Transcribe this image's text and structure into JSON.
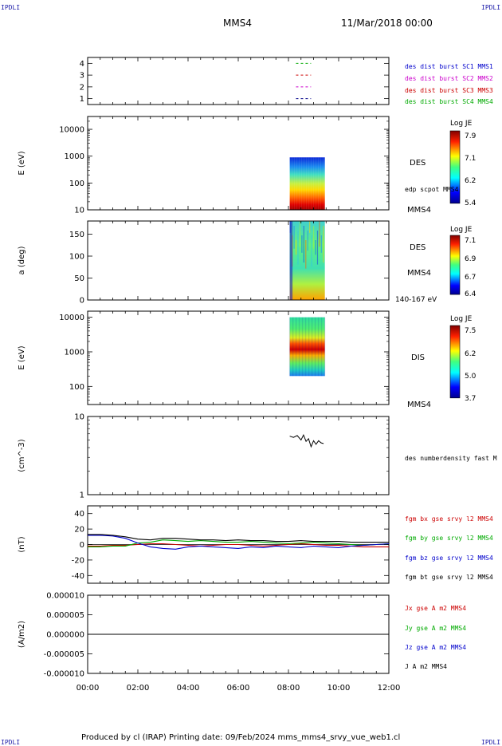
{
  "page": {
    "corner_label": "IPDLI",
    "spacecraft": "MMS4",
    "datetime": "11/Mar/2018 00:00",
    "footer": "Produced by cl (IRAP)   Printing date: 09/Feb/2024   mms_mms4_srvy_vue_web1.cl"
  },
  "chart_data": [
    {
      "type": "scatter",
      "name": "burst-availability",
      "y_ticks": [
        "1",
        "2",
        "3",
        "4"
      ],
      "ylim": [
        0.5,
        4.5
      ],
      "legend": [
        {
          "label": "des dist burst SC1 MMS1",
          "color": "#0000cc"
        },
        {
          "label": "des dist burst SC2 MMS2",
          "color": "#cc00cc"
        },
        {
          "label": "des dist burst SC3 MMS3",
          "color": "#cc0000"
        },
        {
          "label": "des dist burst SC4 MMS4",
          "color": "#00aa00"
        }
      ],
      "segments": [
        {
          "sc": 4,
          "start": 8.3,
          "end": 8.9,
          "color": "#00aa00"
        },
        {
          "sc": 3,
          "start": 8.3,
          "end": 8.9,
          "color": "#cc0000"
        },
        {
          "sc": 2,
          "start": 8.3,
          "end": 8.9,
          "color": "#cc00cc"
        },
        {
          "sc": 1,
          "start": 8.3,
          "end": 8.9,
          "color": "#000088"
        }
      ]
    },
    {
      "type": "heatmap",
      "name": "des-energy",
      "ylabel": "E (eV)",
      "y_scale": "log",
      "y_ticks": [
        "10",
        "100",
        "1000",
        "10000"
      ],
      "ylim": [
        10,
        30000
      ],
      "panel_label": "DES",
      "extra_label": "edp scpot MMS4",
      "colorbar": {
        "title": "Log JE",
        "ticks": [
          "7.9",
          "7.1",
          "6.2",
          "5.4"
        ]
      },
      "block": {
        "t_start": 8.05,
        "t_end": 9.45
      }
    },
    {
      "type": "heatmap",
      "name": "des-pitch",
      "ylabel": "a (deg)",
      "y_ticks": [
        "0",
        "50",
        "100",
        "150"
      ],
      "ylim": [
        0,
        180
      ],
      "panel_label": "DES",
      "spacecraft_label": "MMS4",
      "energy_label": "140-167 eV",
      "colorbar": {
        "title": "Log JE",
        "ticks": [
          "7.1",
          "6.9",
          "6.7",
          "6.4"
        ]
      },
      "block": {
        "t_start": 8.05,
        "t_end": 9.45
      }
    },
    {
      "type": "heatmap",
      "name": "dis-energy",
      "ylabel": "E (eV)",
      "y_scale": "log",
      "y_ticks": [
        "100",
        "1000",
        "10000"
      ],
      "ylim": [
        30,
        15000
      ],
      "panel_label": "DIS",
      "spacecraft_label": "MMS4",
      "colorbar": {
        "title": "Log JE",
        "ticks": [
          "7.5",
          "6.2",
          "5.0",
          "3.7"
        ]
      },
      "block": {
        "t_start": 8.05,
        "t_end": 9.45
      }
    },
    {
      "type": "line",
      "name": "density",
      "ylabel": "(cm^-3)",
      "y_scale": "log",
      "y_ticks": [
        "1",
        "10"
      ],
      "ylim": [
        1,
        10
      ],
      "legend": [
        {
          "label": "des numberdensity fast M",
          "color": "#000000"
        }
      ],
      "x": [
        8.05,
        8.2,
        8.35,
        8.5,
        8.6,
        8.7,
        8.8,
        8.9,
        9.0,
        9.1,
        9.2,
        9.3,
        9.4
      ],
      "values": [
        5.6,
        5.4,
        5.7,
        5.0,
        5.8,
        4.8,
        5.2,
        4.1,
        4.9,
        4.4,
        4.9,
        4.6,
        4.5
      ]
    },
    {
      "type": "line",
      "name": "magnetic-field",
      "ylabel": "(nT)",
      "y_ticks": [
        "-40",
        "-20",
        "0",
        "20",
        "40"
      ],
      "ylim": [
        -50,
        50
      ],
      "legend": [
        {
          "label": "fgm bx gse srvy l2 MMS4",
          "color": "#cc0000"
        },
        {
          "label": "fgm by gse srvy l2 MMS4",
          "color": "#00aa00"
        },
        {
          "label": "fgm bz gse srvy l2 MMS4",
          "color": "#0000cc"
        },
        {
          "label": "fgm bt gse srvy l2 MMS4",
          "color": "#000000"
        }
      ],
      "x": [
        0,
        0.5,
        1,
        1.5,
        2,
        2.5,
        3,
        3.5,
        4,
        4.5,
        5,
        5.5,
        6,
        6.5,
        7,
        7.5,
        8,
        8.5,
        9,
        9.5,
        10,
        10.5,
        11,
        11.5,
        12
      ],
      "series": [
        {
          "name": "fgm bx gse srvy l2 MMS4",
          "color": "#cc0000",
          "values": [
            -2,
            -2,
            -1,
            -1,
            0,
            1,
            1,
            0,
            -1,
            -2,
            -1,
            0,
            0,
            -1,
            -2,
            -1,
            0,
            1,
            0,
            -1,
            -1,
            -2,
            -3,
            -3,
            -3
          ]
        },
        {
          "name": "fgm by gse srvy l2 MMS4",
          "color": "#00aa00",
          "values": [
            -3,
            -3,
            -2,
            -2,
            2,
            3,
            6,
            5,
            4,
            5,
            4,
            3,
            3,
            4,
            3,
            2,
            1,
            2,
            3,
            2,
            1,
            0,
            -1,
            0,
            1
          ]
        },
        {
          "name": "fgm bz gse srvy l2 MMS4",
          "color": "#0000cc",
          "values": [
            12,
            12,
            11,
            8,
            2,
            -3,
            -5,
            -6,
            -3,
            -2,
            -3,
            -4,
            -5,
            -3,
            -4,
            -2,
            -3,
            -4,
            -2,
            -3,
            -4,
            -2,
            -1,
            0,
            1
          ]
        },
        {
          "name": "fgm bt gse srvy l2 MMS4",
          "color": "#000000",
          "values": [
            13,
            13,
            12,
            10,
            7,
            6,
            8,
            8,
            7,
            6,
            6,
            5,
            6,
            5,
            5,
            4,
            4,
            5,
            4,
            4,
            4,
            3,
            3,
            3,
            3
          ]
        }
      ]
    },
    {
      "type": "line",
      "name": "current-density",
      "ylabel": "(A/m2)",
      "y_ticks": [
        "-0.000010",
        "-0.000005",
        "0.000000",
        "0.000005",
        "0.000010"
      ],
      "ylim": [
        -1e-05,
        1e-05
      ],
      "legend": [
        {
          "label": "Jx gse A m2 MMS4",
          "color": "#cc0000"
        },
        {
          "label": "Jy gse A m2 MMS4",
          "color": "#00aa00"
        },
        {
          "label": "Jz gse A m2 MMS4",
          "color": "#0000cc"
        },
        {
          "label": "J A m2 MMS4",
          "color": "#000000"
        }
      ],
      "x": [
        0,
        12
      ],
      "values": [
        0,
        0
      ]
    }
  ],
  "time_axis": {
    "ticks": [
      "00:00",
      "02:00",
      "04:00",
      "06:00",
      "08:00",
      "10:00",
      "12:00"
    ],
    "xlim": [
      0,
      12
    ]
  }
}
